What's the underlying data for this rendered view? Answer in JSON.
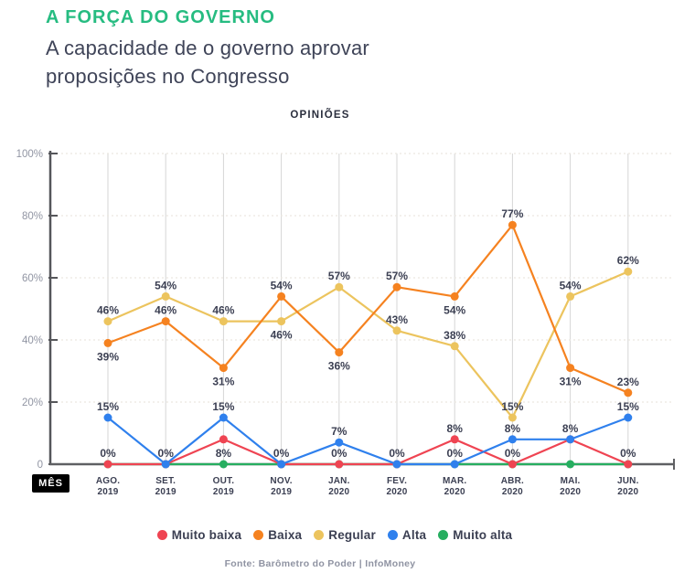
{
  "header": {
    "title": "A FORÇA DO GOVERNO",
    "subtitle_line1": "A capacidade de o governo aprovar",
    "subtitle_line2": "proposições no Congresso"
  },
  "chart_data": {
    "type": "line",
    "title": "OPINIÕES",
    "x_axis_label": "MÊS",
    "categories": [
      {
        "month": "AGO.",
        "year": "2019"
      },
      {
        "month": "SET.",
        "year": "2019"
      },
      {
        "month": "OUT.",
        "year": "2019"
      },
      {
        "month": "NOV.",
        "year": "2019"
      },
      {
        "month": "JAN.",
        "year": "2020"
      },
      {
        "month": "FEV.",
        "year": "2020"
      },
      {
        "month": "MAR.",
        "year": "2020"
      },
      {
        "month": "ABR.",
        "year": "2020"
      },
      {
        "month": "MAI.",
        "year": "2020"
      },
      {
        "month": "JUN.",
        "year": "2020"
      }
    ],
    "y_ticks": [
      {
        "label": "100%",
        "value": 100
      },
      {
        "label": "80%",
        "value": 80
      },
      {
        "label": "60%",
        "value": 60
      },
      {
        "label": "40%",
        "value": 40
      },
      {
        "label": "20%",
        "value": 20
      },
      {
        "label": "0",
        "value": 0
      }
    ],
    "ylim": [
      0,
      100
    ],
    "unit": "%",
    "grid": true,
    "legend_position": "bottom",
    "series": [
      {
        "name": "Muito baixa",
        "color": "#ef4452",
        "values": [
          0,
          0,
          8,
          0,
          0,
          0,
          8,
          0,
          8,
          0
        ],
        "label_positions": [
          "above",
          "above",
          "below",
          "above",
          "above",
          "above",
          "above",
          "above",
          "above",
          "above"
        ]
      },
      {
        "name": "Baixa",
        "color": "#f58220",
        "values": [
          39,
          46,
          31,
          54,
          36,
          57,
          54,
          77,
          31,
          23
        ],
        "label_positions": [
          "below",
          "above",
          "below",
          "above",
          "below",
          "above",
          "below",
          "above",
          "below",
          "above"
        ]
      },
      {
        "name": "Regular",
        "color": "#ecc45e",
        "values": [
          46,
          54,
          46,
          46,
          57,
          43,
          38,
          15,
          54,
          62
        ],
        "label_positions": [
          "above",
          "above",
          "above",
          "below",
          "above",
          "above",
          "above",
          "above",
          "above",
          "above"
        ]
      },
      {
        "name": "Alta",
        "color": "#2f80ed",
        "values": [
          15,
          0,
          15,
          0,
          7,
          0,
          0,
          8,
          8,
          15
        ],
        "label_positions": [
          "above",
          null,
          "above",
          null,
          "above",
          null,
          "above",
          "above",
          null,
          "above"
        ]
      },
      {
        "name": "Muito alta",
        "color": "#27ae60",
        "values": [
          0,
          0,
          0,
          0,
          0,
          0,
          0,
          0,
          0,
          0
        ],
        "label_positions": [
          null,
          null,
          null,
          null,
          null,
          null,
          null,
          null,
          null,
          null
        ]
      }
    ]
  },
  "footer": {
    "source": "Fonte: Barômetro do Poder | InfoMoney"
  }
}
